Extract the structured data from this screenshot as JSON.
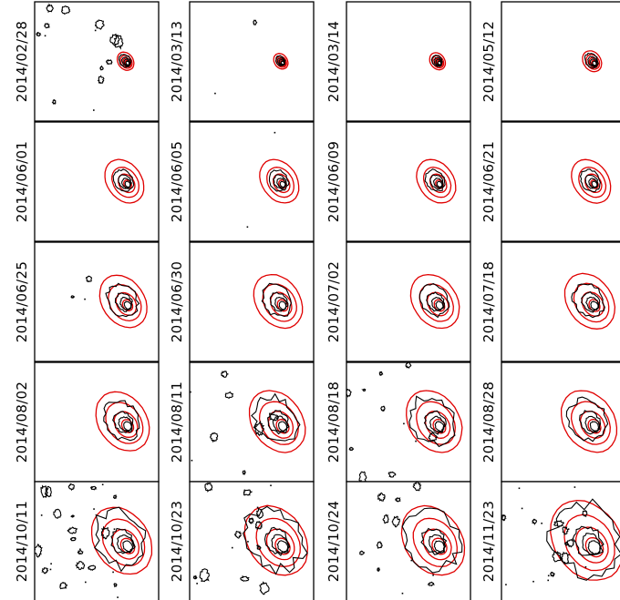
{
  "figure": {
    "observed_contour_color": "#000000",
    "model_contour_color": "#e00000",
    "rows": [
      [
        {
          "date": "2014/02/28",
          "size": 0.35,
          "spread": 0.1,
          "noise": 0.5,
          "seed": 1
        },
        {
          "date": "2014/03/13",
          "size": 0.3,
          "spread": 0.0,
          "noise": 0.05,
          "seed": 2
        },
        {
          "date": "2014/03/14",
          "size": 0.33,
          "spread": 0.05,
          "noise": 0.0,
          "seed": 3
        },
        {
          "date": "2014/05/12",
          "size": 0.4,
          "spread": 0.1,
          "noise": 0.0,
          "seed": 4
        }
      ],
      [
        {
          "date": "2014/06/01",
          "size": 0.55,
          "spread": 0.2,
          "noise": 0.0,
          "seed": 5
        },
        {
          "date": "2014/06/05",
          "size": 0.55,
          "spread": 0.2,
          "noise": 0.05,
          "seed": 6
        },
        {
          "date": "2014/06/09",
          "size": 0.55,
          "spread": 0.2,
          "noise": 0.0,
          "seed": 7
        },
        {
          "date": "2014/06/21",
          "size": 0.55,
          "spread": 0.2,
          "noise": 0.0,
          "seed": 8
        }
      ],
      [
        {
          "date": "2014/06/25",
          "size": 0.72,
          "spread": 0.45,
          "noise": 0.1,
          "seed": 9
        },
        {
          "date": "2014/06/30",
          "size": 0.75,
          "spread": 0.35,
          "noise": 0.0,
          "seed": 10
        },
        {
          "date": "2014/07/02",
          "size": 0.75,
          "spread": 0.3,
          "noise": 0.0,
          "seed": 11
        },
        {
          "date": "2014/07/18",
          "size": 0.78,
          "spread": 0.35,
          "noise": 0.0,
          "seed": 12
        }
      ],
      [
        {
          "date": "2014/08/02",
          "size": 0.85,
          "spread": 0.45,
          "noise": 0.0,
          "seed": 13
        },
        {
          "date": "2014/08/11",
          "size": 0.9,
          "spread": 0.7,
          "noise": 0.3,
          "seed": 14
        },
        {
          "date": "2014/08/18",
          "size": 0.9,
          "spread": 0.75,
          "noise": 0.35,
          "seed": 15
        },
        {
          "date": "2014/08/28",
          "size": 0.9,
          "spread": 0.5,
          "noise": 0.0,
          "seed": 16
        }
      ],
      [
        {
          "date": "2014/10/11",
          "size": 1.0,
          "spread": 0.85,
          "noise": 0.9,
          "seed": 17
        },
        {
          "date": "2014/10/23",
          "size": 1.05,
          "spread": 0.95,
          "noise": 0.6,
          "seed": 18
        },
        {
          "date": "2014/10/24",
          "size": 1.05,
          "spread": 0.9,
          "noise": 0.4,
          "seed": 19
        },
        {
          "date": "2014/11/23",
          "size": 1.25,
          "spread": 1.0,
          "noise": 0.7,
          "seed": 20
        }
      ]
    ]
  }
}
